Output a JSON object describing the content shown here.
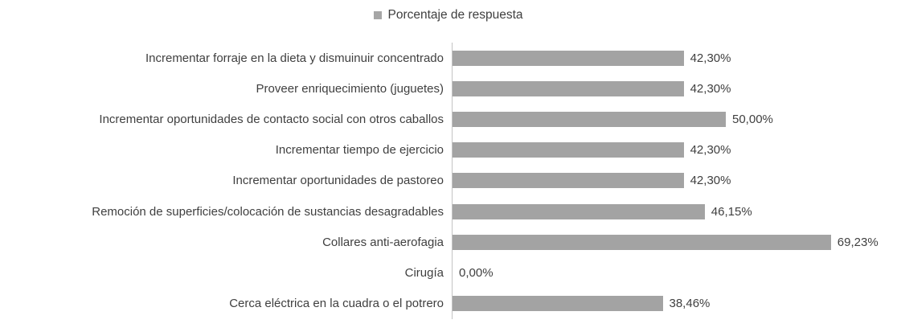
{
  "chart_data": {
    "type": "bar",
    "orientation": "horizontal",
    "legend_label": "Porcentaje de respuesta",
    "legend_position": "top",
    "grid": false,
    "xlim": [
      0,
      80
    ],
    "bar_color": "#a3a3a3",
    "legend_marker_color": "#a6a6a6",
    "axis_color": "#c3c3c3",
    "text_color": "#3f3f3f",
    "categories": [
      "Incrementar forraje en la dieta y dismuinuir concentrado",
      "Proveer enriquecimiento (juguetes)",
      "Incrementar oportunidades de contacto social con otros caballos",
      "Incrementar tiempo de ejercicio",
      "Incrementar oportunidades de pastoreo",
      "Remoción de superficies/colocación de sustancias desagradables",
      "Collares anti-aerofagia",
      "Cirugía",
      "Cerca eléctrica en la cuadra o el potrero"
    ],
    "values": [
      42.3,
      42.3,
      50.0,
      42.3,
      42.3,
      46.15,
      69.23,
      0.0,
      38.46
    ],
    "value_labels": [
      "42,30%",
      "42,30%",
      "50,00%",
      "42,30%",
      "42,30%",
      "46,15%",
      "69,23%",
      "0,00%",
      "38,46%"
    ]
  }
}
